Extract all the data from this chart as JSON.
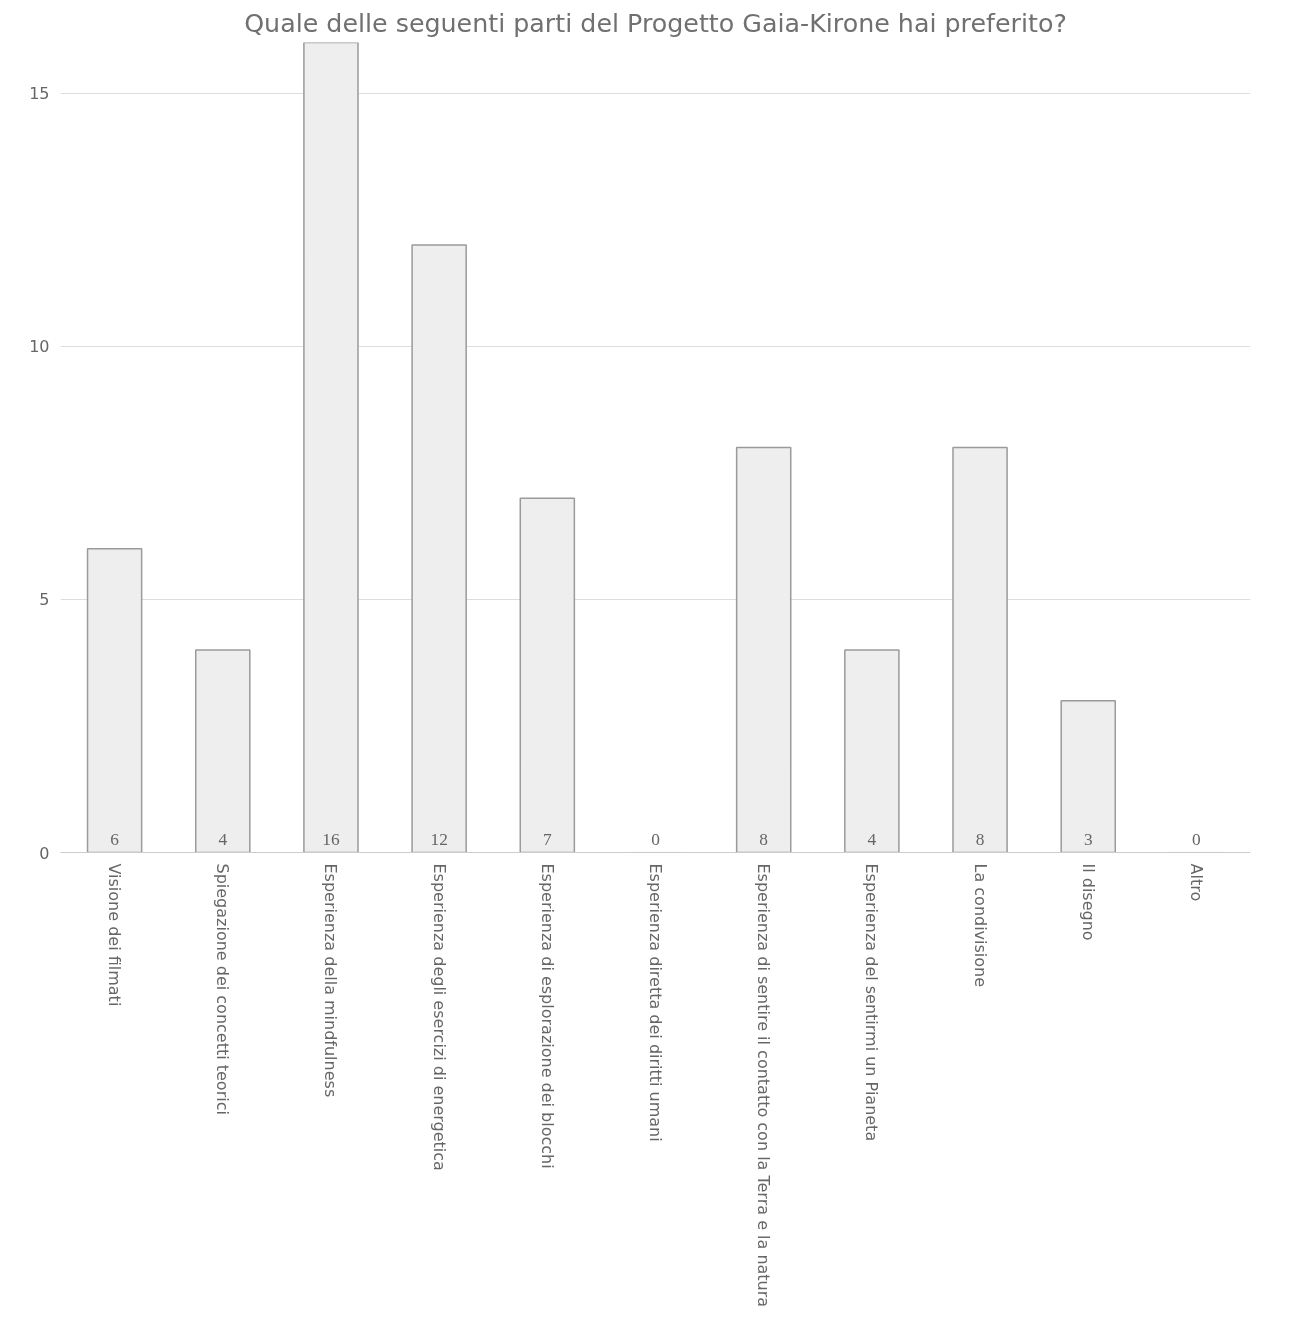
{
  "chart_data": {
    "type": "bar",
    "title": "Quale delle seguenti parti del Progetto Gaia-Kirone hai preferito?",
    "categories": [
      "Visione dei filmati",
      "Spiegazione dei concetti teorici",
      "Esperienza della mindfulness",
      "Esperienza degli esercizi di energetica",
      "Esperienza di esplorazione dei blocchi",
      "Esperienza diretta dei diritti umani",
      "Esperienza di sentire il contatto con la Terra e la natura",
      "Esperienza del sentirmi un Pianeta",
      "La condivisione",
      "Il disegno",
      "Altro"
    ],
    "values": [
      6,
      4,
      16,
      12,
      7,
      0,
      8,
      4,
      8,
      3,
      0
    ],
    "color": "#eeeeee",
    "ylim": [
      0,
      16
    ],
    "yticks": [
      0,
      5,
      10,
      15
    ],
    "grid": "y",
    "data_labels": true
  }
}
